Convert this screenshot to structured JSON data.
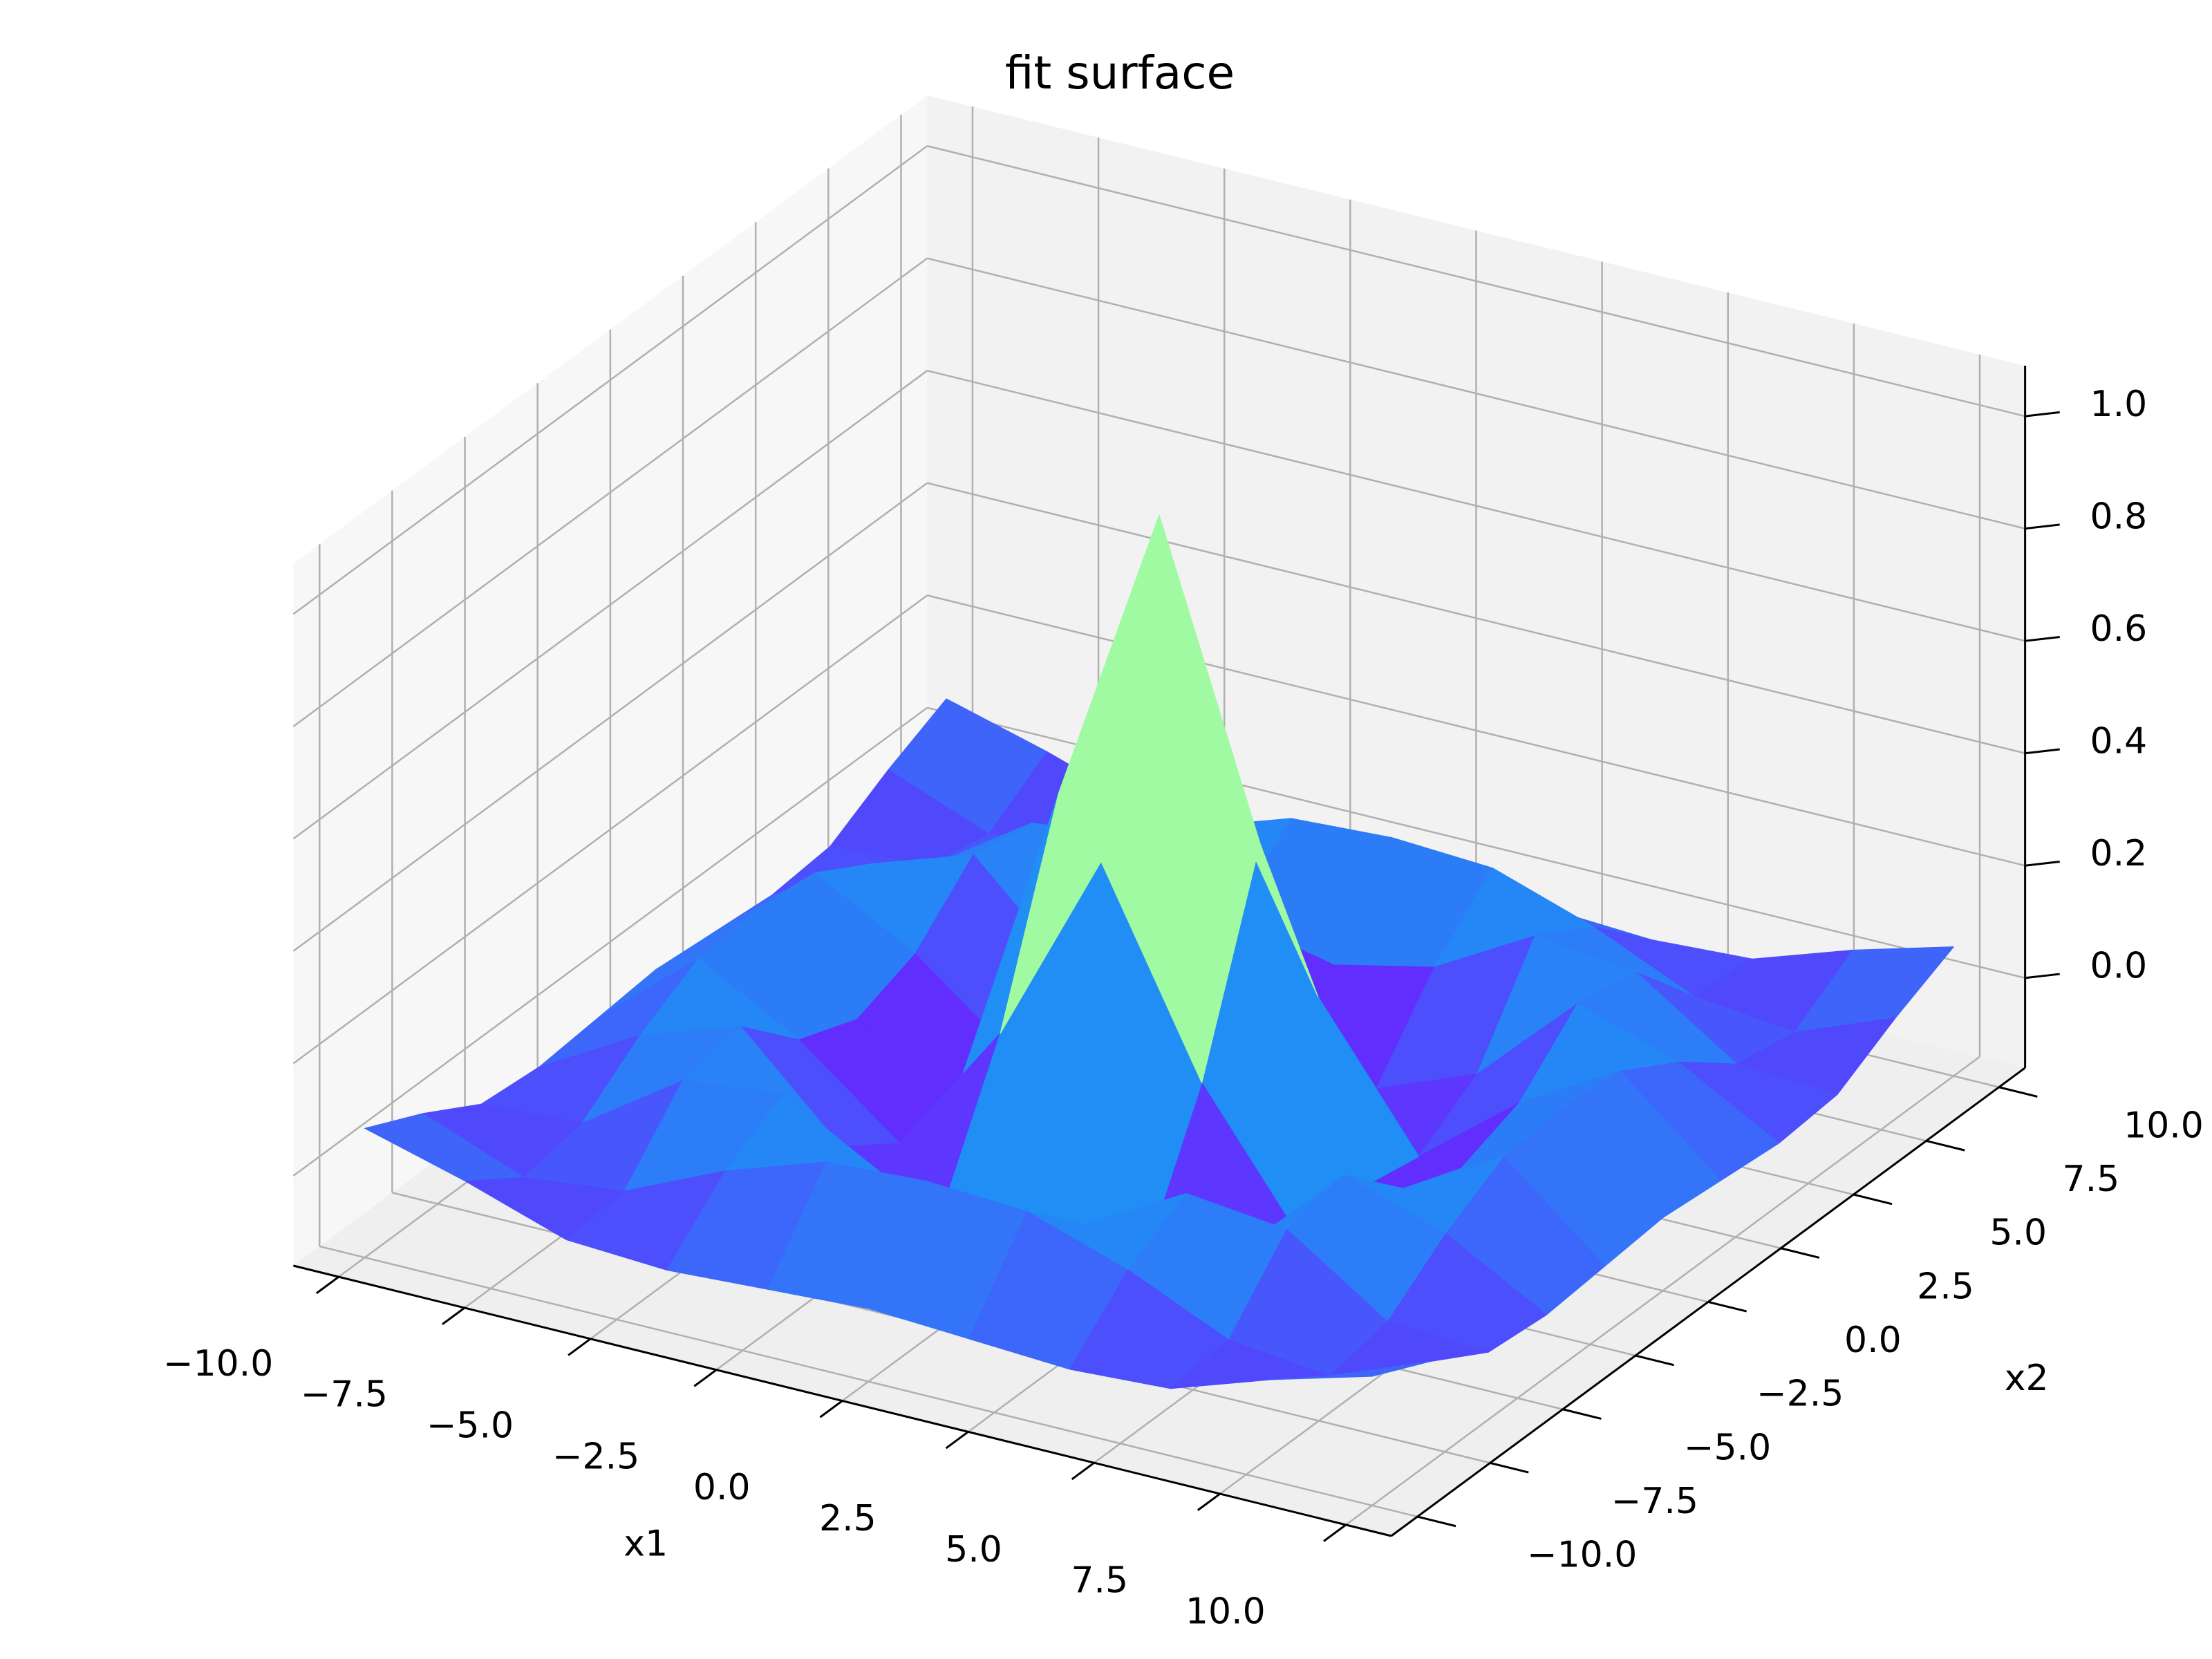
{
  "chart_data": {
    "type": "surface3d",
    "title": "fit surface",
    "xlabel": "x1",
    "ylabel": "x2",
    "x": [
      -10,
      -8,
      -6,
      -4,
      -2,
      0,
      2,
      4,
      6,
      8,
      10
    ],
    "y": [
      -10,
      -8,
      -6,
      -4,
      -2,
      0,
      2,
      4,
      6,
      8,
      10
    ],
    "z": [
      [
        0.07,
        0.02,
        -0.04,
        -0.05,
        -0.04,
        -0.03,
        -0.04,
        -0.05,
        -0.04,
        0.02,
        0.07
      ],
      [
        0.02,
        -0.05,
        -0.03,
        0.05,
        0.11,
        0.12,
        0.11,
        0.05,
        -0.03,
        -0.05,
        0.02
      ],
      [
        -0.04,
        -0.03,
        0.09,
        0.11,
        0.01,
        -0.03,
        0.01,
        0.11,
        0.09,
        -0.03,
        -0.04
      ],
      [
        -0.05,
        0.05,
        0.11,
        -0.06,
        -0.13,
        -0.11,
        -0.13,
        -0.06,
        0.11,
        0.05,
        -0.05
      ],
      [
        -0.04,
        0.11,
        0.01,
        -0.13,
        0.11,
        0.46,
        0.11,
        -0.13,
        0.01,
        0.11,
        -0.04
      ],
      [
        -0.03,
        0.12,
        -0.03,
        -0.11,
        0.46,
        1.0,
        0.46,
        -0.11,
        -0.03,
        0.12,
        -0.03
      ],
      [
        -0.04,
        0.11,
        0.01,
        -0.13,
        0.11,
        0.46,
        0.11,
        -0.13,
        0.01,
        0.11,
        -0.04
      ],
      [
        -0.05,
        0.05,
        0.11,
        -0.06,
        -0.13,
        -0.11,
        -0.13,
        -0.06,
        0.11,
        0.05,
        -0.05
      ],
      [
        -0.04,
        -0.03,
        0.09,
        0.11,
        0.01,
        -0.03,
        0.01,
        0.11,
        0.09,
        -0.03,
        -0.04
      ],
      [
        0.02,
        -0.05,
        -0.03,
        0.05,
        0.11,
        0.12,
        0.11,
        0.05,
        -0.03,
        -0.05,
        0.02
      ],
      [
        0.07,
        0.02,
        -0.04,
        -0.05,
        -0.04,
        -0.03,
        -0.04,
        -0.05,
        -0.04,
        0.02,
        0.07
      ]
    ],
    "colormap": "rainbow",
    "xlim": [
      -10.9,
      10.9
    ],
    "ylim": [
      -10.9,
      10.9
    ],
    "zlim": [
      -0.16,
      1.09
    ],
    "xticks": [
      {
        "value": -10,
        "label": "−10.0"
      },
      {
        "value": -7.5,
        "label": "−7.5"
      },
      {
        "value": -5,
        "label": "−5.0"
      },
      {
        "value": -2.5,
        "label": "−2.5"
      },
      {
        "value": 0,
        "label": "0.0"
      },
      2.5,
      {
        "value": 5,
        "label": "5.0"
      },
      7.5,
      {
        "value": 10,
        "label": "10.0"
      }
    ],
    "yticks": [
      {
        "value": -10,
        "label": "−10.0"
      },
      {
        "value": -7.5,
        "label": "−7.5"
      },
      {
        "value": -5,
        "label": "−5.0"
      },
      {
        "value": -2.5,
        "label": "−2.5"
      },
      {
        "value": 0,
        "label": "0.0"
      },
      2.5,
      {
        "value": 5,
        "label": "5.0"
      },
      7.5,
      {
        "value": 10,
        "label": "10.0"
      }
    ],
    "zticks": [
      {
        "value": 0,
        "label": "0.0"
      },
      0.2,
      0.4,
      0.6,
      0.8,
      {
        "value": 1,
        "label": "1.0"
      }
    ],
    "grid": true
  }
}
